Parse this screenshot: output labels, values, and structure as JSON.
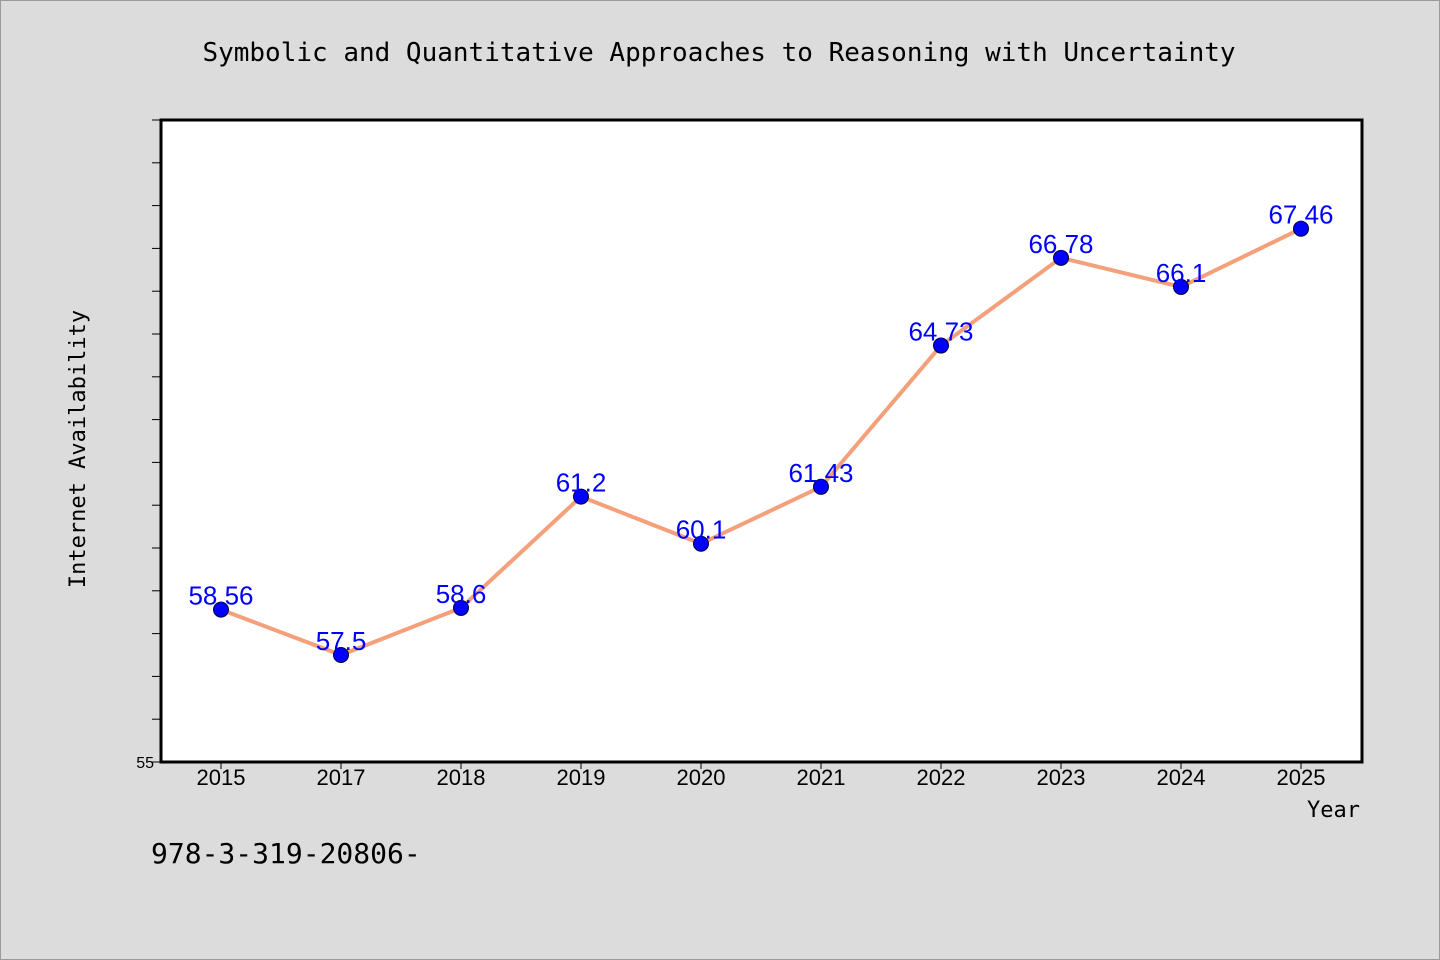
{
  "chart_data": {
    "type": "line",
    "title": "Symbolic and Quantitative Approaches to Reasoning with Uncertainty",
    "xlabel": "Year",
    "ylabel": "Internet Availability",
    "categories": [
      "2015",
      "2017",
      "2018",
      "2019",
      "2020",
      "2021",
      "2022",
      "2023",
      "2024",
      "2025"
    ],
    "series": [
      {
        "values": [
          58.56,
          57.5,
          58.6,
          61.2,
          60.1,
          61.43,
          64.73,
          66.78,
          66.1,
          67.46
        ],
        "labels": [
          "58.56",
          "57.5",
          "58.6",
          "61.2",
          "60.1",
          "61.43",
          "64.73",
          "66.78",
          "66.1",
          "67.46"
        ]
      }
    ],
    "ylim": [
      55,
      70
    ],
    "y_tick_labels": [
      "55"
    ],
    "y_minor_tick_step": 1,
    "grid": false,
    "legend": "none",
    "line_color": "#f4a07a",
    "marker_color": "#0000ff",
    "label_color": "#0000ff"
  },
  "footer": {
    "isbn_text": "978-3-319-20806-"
  }
}
